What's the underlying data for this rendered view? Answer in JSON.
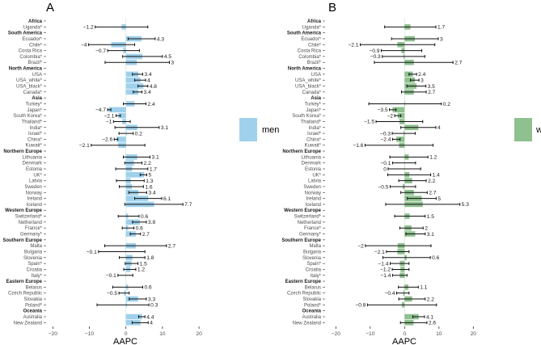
{
  "chart_data": [
    {
      "type": "bar",
      "orientation": "horizontal",
      "panel_label": "A",
      "xlabel": "AAPC",
      "xlim": [
        -20,
        20
      ],
      "xticks": [
        -20,
        -10,
        0,
        10,
        20
      ],
      "legend": {
        "label": "men",
        "placement": "right"
      },
      "color": "#9fd1ec",
      "rows": [
        {
          "label": "Africa",
          "header": true
        },
        {
          "label": "Uganda*",
          "value": -1.2,
          "ci": [
            -8.4,
            6.0
          ]
        },
        {
          "label": "South America",
          "header": true
        },
        {
          "label": "Ecuador*",
          "value": 4.3,
          "ci": [
            0.6,
            8.0
          ]
        },
        {
          "label": "Chile*",
          "value": -4,
          "ci": [
            -10.2,
            2.4
          ]
        },
        {
          "label": "Costa Rica",
          "value": -0.7,
          "ci": [
            -5.0,
            3.7
          ]
        },
        {
          "label": "Colombia*",
          "value": 4.5,
          "ci": [
            -0.9,
            10.0
          ]
        },
        {
          "label": "Brazil*",
          "value": 3,
          "ci": [
            -5.7,
            11.9
          ]
        },
        {
          "label": "North America",
          "header": true
        },
        {
          "label": "USA",
          "value": 3.4,
          "ci": [
            1.8,
            4.6
          ]
        },
        {
          "label": "USA_white*",
          "value": 4,
          "ci": [
            2.4,
            5.4
          ]
        },
        {
          "label": "USA_black*",
          "value": 4.8,
          "ci": [
            3.3,
            6.0
          ]
        },
        {
          "label": "Canada*",
          "value": 3.4,
          "ci": [
            2.0,
            4.4
          ]
        },
        {
          "label": "Asia",
          "header": true
        },
        {
          "label": "Turkey*",
          "value": 2.4,
          "ci": [
            -0.7,
            5.5
          ]
        },
        {
          "label": "Japan*",
          "value": -4.7,
          "ci": [
            -5.0,
            -4.1
          ]
        },
        {
          "label": "South Korea*",
          "value": -2.1,
          "ci": [
            -2.7,
            -1.5
          ]
        },
        {
          "label": "Thailand*",
          "value": -1,
          "ci": [
            -3.4,
            1.2
          ]
        },
        {
          "label": "India*",
          "value": 3.1,
          "ci": [
            -3.0,
            9.1
          ]
        },
        {
          "label": "Israel*",
          "value": 0.2,
          "ci": [
            -1.9,
            2.0
          ]
        },
        {
          "label": "China*",
          "value": -2.6,
          "ci": [
            -3.2,
            -2.2
          ]
        },
        {
          "label": "Kuwait*",
          "value": -2.1,
          "ci": [
            -9.5,
            5.2
          ]
        },
        {
          "label": "Northern Europe",
          "header": true
        },
        {
          "label": "Lithuania",
          "value": 3.1,
          "ci": [
            -0.7,
            6.6
          ]
        },
        {
          "label": "Denmark",
          "value": 2.2,
          "ci": [
            -0.3,
            4.4
          ]
        },
        {
          "label": "Estonia",
          "value": 1.7,
          "ci": [
            -2.8,
            6.0
          ]
        },
        {
          "label": "UK*",
          "value": 5,
          "ci": [
            3.9,
            5.7
          ]
        },
        {
          "label": "Latvia",
          "value": 1.3,
          "ci": [
            -2.6,
            5.0
          ]
        },
        {
          "label": "Sweden",
          "value": 1.6,
          "ci": [
            -1.8,
            4.8
          ]
        },
        {
          "label": "Norway",
          "value": 3.4,
          "ci": [
            0.8,
            5.7
          ]
        },
        {
          "label": "Ireland",
          "value": 6.1,
          "ci": [
            2.4,
            9.8
          ]
        },
        {
          "label": "Iceland",
          "value": 7.7,
          "ci": [
            -0.3,
            15.6
          ]
        },
        {
          "label": "Western Europe",
          "header": true
        },
        {
          "label": "Switzerland*",
          "value": 0.6,
          "ci": [
            -2.1,
            3.6
          ]
        },
        {
          "label": "Netherland",
          "value": 3.8,
          "ci": [
            1.8,
            5.6
          ]
        },
        {
          "label": "France*",
          "value": 0.6,
          "ci": [
            -1.0,
            2.2
          ]
        },
        {
          "label": "Germany*",
          "value": 2.7,
          "ci": [
            1.2,
            4.0
          ]
        },
        {
          "label": "Southern Europe",
          "header": true
        },
        {
          "label": "Malta",
          "value": 2.7,
          "ci": [
            -5.8,
            11.1
          ]
        },
        {
          "label": "Bulgaria",
          "value": -0.1,
          "ci": [
            -7.5,
            5.2
          ]
        },
        {
          "label": "Slovenia",
          "value": 1.8,
          "ci": [
            -1.8,
            5.2
          ]
        },
        {
          "label": "Spain*",
          "value": 1.5,
          "ci": [
            -0.2,
            3.3
          ]
        },
        {
          "label": "Croatia",
          "value": 1.2,
          "ci": [
            -0.6,
            2.7
          ]
        },
        {
          "label": "Italy*",
          "value": -0.1,
          "ci": [
            -2.2,
            1.9
          ]
        },
        {
          "label": "Eastern Europe",
          "header": true
        },
        {
          "label": "Belarus",
          "value": 0.6,
          "ci": [
            -3.6,
            4.6
          ]
        },
        {
          "label": "Czech Republic",
          "value": -0.5,
          "ci": [
            -1.9,
            0.9
          ]
        },
        {
          "label": "Slovakia",
          "value": 3.3,
          "ci": [
            0.9,
            5.6
          ]
        },
        {
          "label": "Poland*",
          "value": 0.3,
          "ci": [
            -7.9,
            6.3
          ]
        },
        {
          "label": "Oceania",
          "header": true
        },
        {
          "label": "Australia",
          "value": 4.4,
          "ci": [
            3.5,
            5.2
          ]
        },
        {
          "label": "New Zealand",
          "value": 4,
          "ci": [
            1.7,
            6.1
          ]
        }
      ]
    },
    {
      "type": "bar",
      "orientation": "horizontal",
      "panel_label": "B",
      "xlabel": "AAPC",
      "xlim": [
        -20,
        20
      ],
      "xticks": [
        -20,
        -10,
        0,
        10,
        20
      ],
      "legend": {
        "label": "women",
        "placement": "right"
      },
      "color": "#8fc08f",
      "rows": [
        {
          "label": "Africa",
          "header": true
        },
        {
          "label": "Uganda*",
          "value": 1.7,
          "ci": [
            -5.8,
            9.1
          ]
        },
        {
          "label": "South America",
          "header": true
        },
        {
          "label": "Ecuador*",
          "value": 3,
          "ci": [
            -3.8,
            9.8
          ]
        },
        {
          "label": "Chile*",
          "value": -2.1,
          "ci": [
            -12.9,
            8.8
          ]
        },
        {
          "label": "Costa Rica",
          "value": -0.9,
          "ci": [
            -6.8,
            5.0
          ]
        },
        {
          "label": "Colombia*",
          "value": -0.3,
          "ci": [
            -6.5,
            5.9
          ]
        },
        {
          "label": "Brazil*",
          "value": 2.7,
          "ci": [
            -8.8,
            14.1
          ]
        },
        {
          "label": "North America",
          "header": true
        },
        {
          "label": "USA",
          "value": 2.4,
          "ci": [
            1.3,
            3.5
          ]
        },
        {
          "label": "USA_white*",
          "value": 3,
          "ci": [
            1.7,
            4.2
          ]
        },
        {
          "label": "USA_black*",
          "value": 3.5,
          "ci": [
            0.7,
            6.2
          ]
        },
        {
          "label": "Canada*",
          "value": 2.7,
          "ci": [
            -0.9,
            6.3
          ]
        },
        {
          "label": "Asia",
          "header": true
        },
        {
          "label": "Turkey*",
          "value": 0.2,
          "ci": [
            -10.4,
            10.7
          ]
        },
        {
          "label": "Japan*",
          "value": -3.5,
          "ci": [
            -4.4,
            -2.5
          ]
        },
        {
          "label": "South Korea*",
          "value": -2,
          "ci": [
            -2.9,
            -1.1
          ]
        },
        {
          "label": "Thailand*",
          "value": -1.5,
          "ci": [
            -8.3,
            5.3
          ]
        },
        {
          "label": "India*",
          "value": 4,
          "ci": [
            -1.1,
            9.1
          ]
        },
        {
          "label": "Israel*",
          "value": -0.3,
          "ci": [
            -3.6,
            3.1
          ]
        },
        {
          "label": "China*",
          "value": -2.4,
          "ci": [
            -3.5,
            -1.3
          ]
        },
        {
          "label": "Kuwait*",
          "value": -1.6,
          "ci": [
            -11.5,
            8.3
          ]
        },
        {
          "label": "Northern Europe",
          "header": true
        },
        {
          "label": "Lithuania",
          "value": 1.2,
          "ci": [
            -4.3,
            6.8
          ]
        },
        {
          "label": "Denmark",
          "value": -0.1,
          "ci": [
            -3.5,
            3.2
          ]
        },
        {
          "label": "Estonia",
          "value": 0,
          "ci": [
            -4.8,
            4.7
          ]
        },
        {
          "label": "UK*",
          "value": 1.4,
          "ci": [
            -4.9,
            7.6
          ]
        },
        {
          "label": "Latvia",
          "value": 2.2,
          "ci": [
            -1.7,
            6.3
          ]
        },
        {
          "label": "Sweden",
          "value": -0.5,
          "ci": [
            -4.2,
            3.2
          ]
        },
        {
          "label": "Norway",
          "value": 2.7,
          "ci": [
            -1.1,
            6.6
          ]
        },
        {
          "label": "Ireland",
          "value": 5,
          "ci": [
            0.8,
            9.2
          ]
        },
        {
          "label": "Iceland",
          "value": 5.3,
          "ci": [
            -5.5,
            16.1
          ]
        },
        {
          "label": "Western Europe",
          "header": true
        },
        {
          "label": "Switzerland*",
          "value": 1.5,
          "ci": [
            -2.9,
            6.0
          ]
        },
        {
          "label": "Netherland"
        },
        {
          "label": "France*",
          "value": 2,
          "ci": [
            -1.4,
            5.4
          ]
        },
        {
          "label": "Germany*",
          "value": 3.1,
          "ci": [
            0.4,
            6.0
          ]
        },
        {
          "label": "Southern Europe",
          "header": true
        },
        {
          "label": "Malta",
          "value": -2,
          "ci": [
            -11.4,
            7.7
          ]
        },
        {
          "label": "Bulgaria",
          "value": -2.1,
          "ci": [
            -5.3,
            1.3
          ]
        },
        {
          "label": "Slovenia",
          "value": 0.6,
          "ci": [
            -6.3,
            7.5
          ]
        },
        {
          "label": "Spain*",
          "value": -1.4,
          "ci": [
            -4.2,
            1.3
          ]
        },
        {
          "label": "Croatia",
          "value": -1.2,
          "ci": [
            -3.6,
            1.3
          ]
        },
        {
          "label": "Italy*",
          "value": -1.4,
          "ci": [
            -3.5,
            0.7
          ]
        },
        {
          "label": "Eastern Europe",
          "header": true
        },
        {
          "label": "Belarus",
          "value": 1.1,
          "ci": [
            -1.8,
            4.0
          ]
        },
        {
          "label": "Czech Republic",
          "value": -0.4,
          "ci": [
            -2.3,
            1.3
          ]
        },
        {
          "label": "Slovakia",
          "value": 2.2,
          "ci": [
            -1.7,
            6.0
          ]
        },
        {
          "label": "Poland*",
          "value": -0.8,
          "ci": [
            -10.8,
            9.3
          ]
        },
        {
          "label": "Oceania",
          "header": true
        },
        {
          "label": "Australia",
          "value": 4.1,
          "ci": [
            2.4,
            5.8
          ]
        },
        {
          "label": "New Zealand",
          "value": 2.6,
          "ci": [
            -1.2,
            6.5
          ]
        }
      ]
    }
  ]
}
